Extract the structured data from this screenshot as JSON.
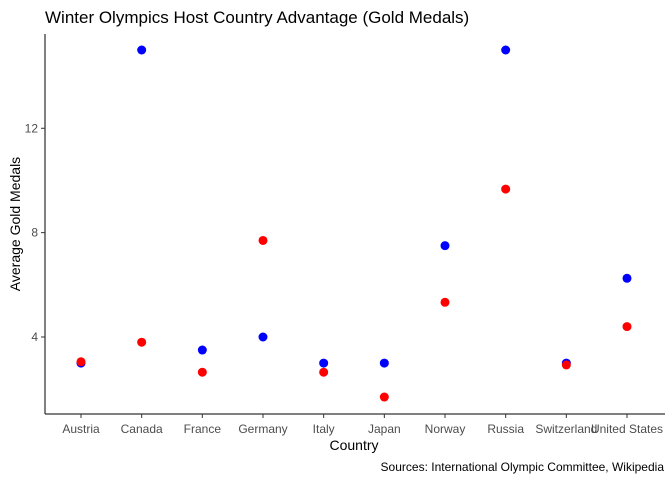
{
  "chart_data": {
    "type": "scatter",
    "title": "Winter Olympics Host Country Advantage (Gold Medals)",
    "xlabel": "Country",
    "ylabel": "Average Gold Medals",
    "caption": "Sources: International Olympic Committee, Wikipedia",
    "categories": [
      "Austria",
      "Canada",
      "France",
      "Germany",
      "Italy",
      "Japan",
      "Norway",
      "Russia",
      "Switzerland",
      "United States"
    ],
    "ylim": [
      0.6,
      15.0
    ],
    "yticks": [
      4,
      8,
      12
    ],
    "ytick_labels": [
      "4",
      "8",
      "12"
    ],
    "grid": false,
    "legend": "none",
    "series": [
      {
        "color": "#0000ff",
        "values": [
          3.0,
          15.0,
          3.5,
          4.0,
          3.0,
          3.0,
          7.5,
          15.0,
          3.0,
          6.25
        ]
      },
      {
        "color": "#ff0000",
        "values": [
          3.05,
          3.8,
          2.65,
          7.7,
          2.65,
          1.7,
          5.33,
          9.67,
          2.93,
          4.4
        ]
      }
    ]
  }
}
